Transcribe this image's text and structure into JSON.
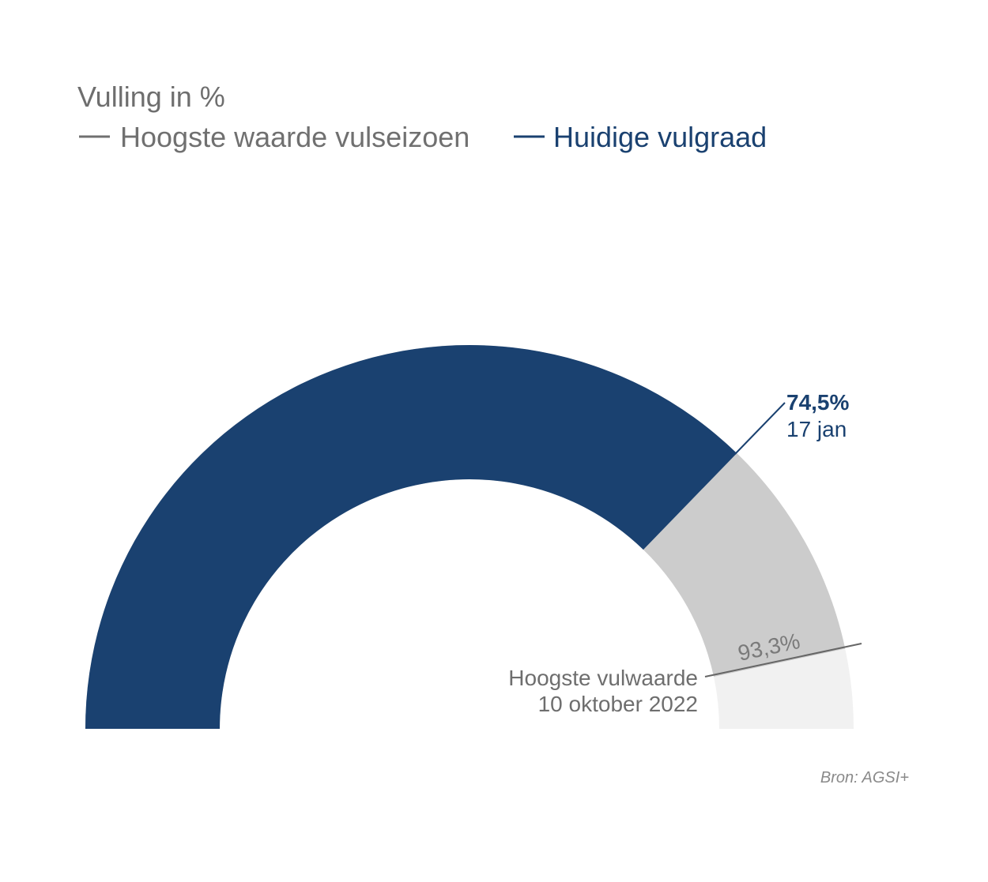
{
  "chart_data": {
    "type": "gauge",
    "title": "Vulling in %",
    "legend": [
      {
        "label": "Hoogste waarde vulseizoen",
        "color": "#707070"
      },
      {
        "label": "Huidige vulgraad",
        "color": "#1a4170"
      }
    ],
    "scale": [
      0,
      100
    ],
    "series": [
      {
        "name": "Huidige vulgraad",
        "value": 74.5,
        "color": "#1a4170"
      },
      {
        "name": "Hoogste waarde vulseizoen",
        "value": 93.3,
        "color": "#cccccc"
      }
    ],
    "remainder_color": "#f1f1f1",
    "current_label": {
      "value": "74,5%",
      "date": "17 jan"
    },
    "max_label": {
      "value": "93,3%",
      "note_line1": "Hoogste vulwaarde",
      "note_line2": "10 oktober 2022"
    },
    "source": "Bron: AGSI+"
  }
}
